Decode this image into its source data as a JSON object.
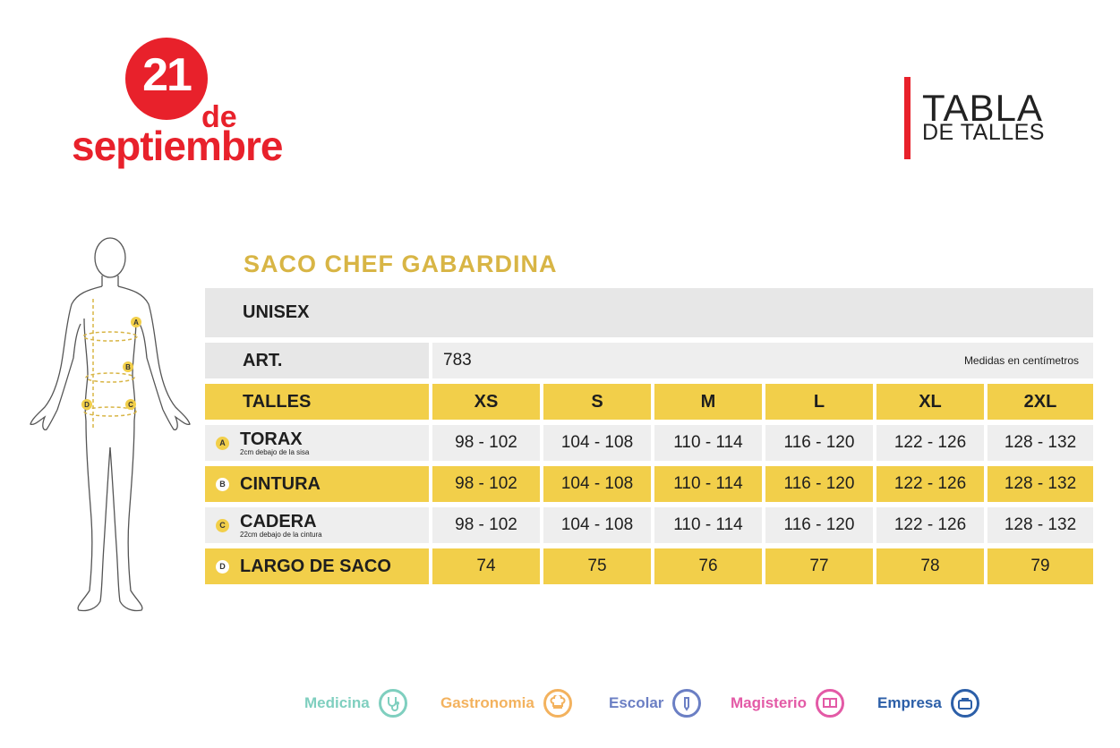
{
  "logo": {
    "day": "21",
    "de": "de",
    "month": "septiembre",
    "color": "#e8212b"
  },
  "header": {
    "title_line1": "TABLA",
    "title_line2": "DE TALLES"
  },
  "product": {
    "title": "SACO CHEF GABARDINA",
    "title_color": "#d8b545"
  },
  "table": {
    "unisex_label": "UNISEX",
    "art_label": "ART.",
    "art_value": "783",
    "units_note": "Medidas en centímetros",
    "talles_label": "TALLES",
    "sizes": [
      "XS",
      "S",
      "M",
      "L",
      "XL",
      "2XL"
    ],
    "rows": [
      {
        "marker": "A",
        "label": "TORAX",
        "sublabel": "2cm debajo de la sisa",
        "values": [
          "98 - 102",
          "104 - 108",
          "110 - 114",
          "116 - 120",
          "122 - 126",
          "128 - 132"
        ]
      },
      {
        "marker": "B",
        "label": "CINTURA",
        "sublabel": "",
        "values": [
          "98 - 102",
          "104 - 108",
          "110 - 114",
          "116 - 120",
          "122 - 126",
          "128 - 132"
        ]
      },
      {
        "marker": "C",
        "label": "CADERA",
        "sublabel": "22cm debajo de la cintura",
        "values": [
          "98 - 102",
          "104 - 108",
          "110 - 114",
          "116 - 120",
          "122 - 126",
          "128 - 132"
        ]
      },
      {
        "marker": "D",
        "label": "LARGO DE SACO",
        "sublabel": "",
        "values": [
          "74",
          "75",
          "76",
          "77",
          "78",
          "79"
        ]
      }
    ],
    "colors": {
      "yellow": "#f2cf4a",
      "grey": "#e7e7e7"
    }
  },
  "figure": {
    "markers": [
      "A",
      "B",
      "C",
      "D"
    ]
  },
  "footer": {
    "items": [
      {
        "label": "Medicina",
        "color": "#7fcfbf",
        "icon": "stethoscope-icon"
      },
      {
        "label": "Gastronomia",
        "color": "#f3b25e",
        "icon": "chef-hat-icon"
      },
      {
        "label": "Escolar",
        "color": "#6b7fc4",
        "icon": "pencil-icon"
      },
      {
        "label": "Magisterio",
        "color": "#e35aa6",
        "icon": "book-icon"
      },
      {
        "label": "Empresa",
        "color": "#2c5fa8",
        "icon": "briefcase-icon"
      }
    ]
  }
}
